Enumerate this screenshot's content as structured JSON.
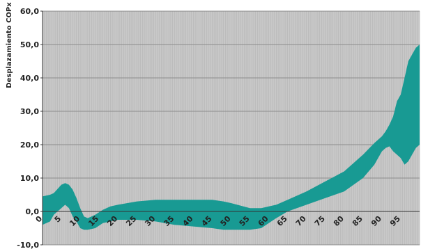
{
  "chart_data": {
    "type": "area",
    "title": "",
    "xlabel": "",
    "ylabel": "Desplazamiento COPx",
    "xlim": [
      0,
      100
    ],
    "ylim": [
      -10,
      60
    ],
    "grid": true,
    "y_ticks": [
      "-10,0",
      "0,0",
      "10,0",
      "20,0",
      "30,0",
      "40,0",
      "50,0",
      "60,0"
    ],
    "y_tick_values": [
      -10,
      0,
      10,
      20,
      30,
      40,
      50,
      60
    ],
    "x_ticks": [
      "0",
      "5",
      "10",
      "15",
      "20",
      "25",
      "30",
      "35",
      "40",
      "45",
      "50",
      "55",
      "60",
      "65",
      "70",
      "75",
      "80",
      "85",
      "90",
      "95"
    ],
    "x_tick_values": [
      0,
      5,
      10,
      15,
      20,
      25,
      30,
      35,
      40,
      45,
      50,
      55,
      60,
      65,
      70,
      75,
      80,
      85,
      90,
      95
    ],
    "colors": {
      "band": "#189a93",
      "plot_bg": "#c8c8c8",
      "minor_grid": "#b4b4b4",
      "major_grid": "#8c8c8c"
    },
    "x": [
      0,
      2,
      3,
      5,
      6,
      7,
      8,
      9,
      10,
      11,
      12,
      14,
      16,
      18,
      20,
      25,
      30,
      35,
      40,
      45,
      48,
      50,
      55,
      58,
      60,
      62,
      65,
      70,
      75,
      80,
      85,
      88,
      90,
      91,
      92,
      93,
      94,
      95,
      96,
      97,
      98,
      99,
      100
    ],
    "series": [
      {
        "values_upper": [
          4.5,
          5.0,
          5.5,
          8.0,
          8.5,
          8.0,
          6.5,
          4.0,
          1.0,
          -1.5,
          -2.0,
          -1.0,
          0.5,
          1.5,
          2.0,
          3.0,
          3.5,
          3.5,
          3.5,
          3.5,
          3.0,
          2.5,
          1.0,
          1.0,
          1.5,
          2.0,
          3.5,
          6.0,
          9.0,
          12.0,
          17.0,
          20.5,
          22.5,
          24.0,
          26.0,
          28.5,
          33.0,
          35.0,
          40.0,
          45.0,
          47.0,
          49.0,
          50.0
        ],
        "values_lower": [
          -4.0,
          -3.0,
          -1.0,
          1.0,
          2.0,
          1.0,
          -1.5,
          -3.0,
          -5.0,
          -5.5,
          -5.5,
          -5.0,
          -3.5,
          -3.0,
          -2.5,
          -2.5,
          -3.0,
          -4.0,
          -4.5,
          -5.0,
          -5.5,
          -5.5,
          -5.5,
          -5.0,
          -3.5,
          -2.0,
          0.0,
          2.0,
          4.0,
          6.0,
          10.0,
          14.0,
          18.0,
          19.0,
          19.5,
          18.0,
          17.0,
          16.0,
          14.0,
          15.0,
          17.0,
          19.0,
          20.0
        ]
      }
    ]
  }
}
